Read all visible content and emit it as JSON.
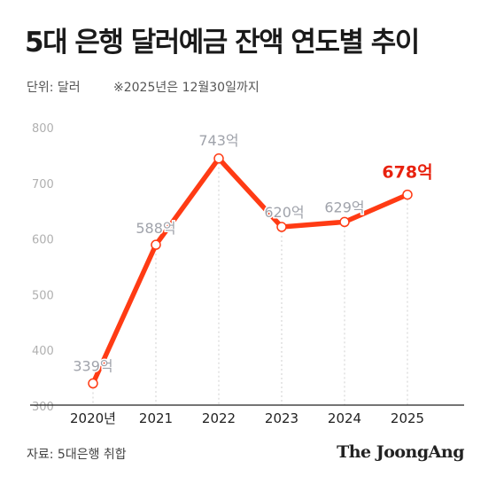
{
  "header": {
    "title": "5대 은행 달러예금 잔액 연도별 추이",
    "unit": "단위: 달러",
    "note": "※2025년은 12월30일까지"
  },
  "footer": {
    "source": "자료: 5대은행 취합",
    "logo": "The JoongAng"
  },
  "colors": {
    "line": "#ff3b14",
    "highlight_label": "#e8210e",
    "muted_label": "#a0a3ab",
    "axis_tick": "#b0b0b0",
    "baseline": "#222222",
    "guide": "#cfcfcf"
  },
  "chart_data": {
    "type": "line",
    "categories": [
      "2020년",
      "2021",
      "2022",
      "2023",
      "2024",
      "2025"
    ],
    "series": [
      {
        "values": [
          339,
          588,
          743,
          620,
          629,
          678
        ],
        "labels": [
          "339억",
          "588억",
          "743억",
          "620억",
          "629억",
          "678억"
        ]
      }
    ],
    "highlight_index": 5,
    "yticks": [
      300,
      400,
      500,
      600,
      700,
      800
    ],
    "ylim": [
      300,
      800
    ],
    "grid": false,
    "legend": "none",
    "xlabel": "",
    "ylabel": ""
  }
}
